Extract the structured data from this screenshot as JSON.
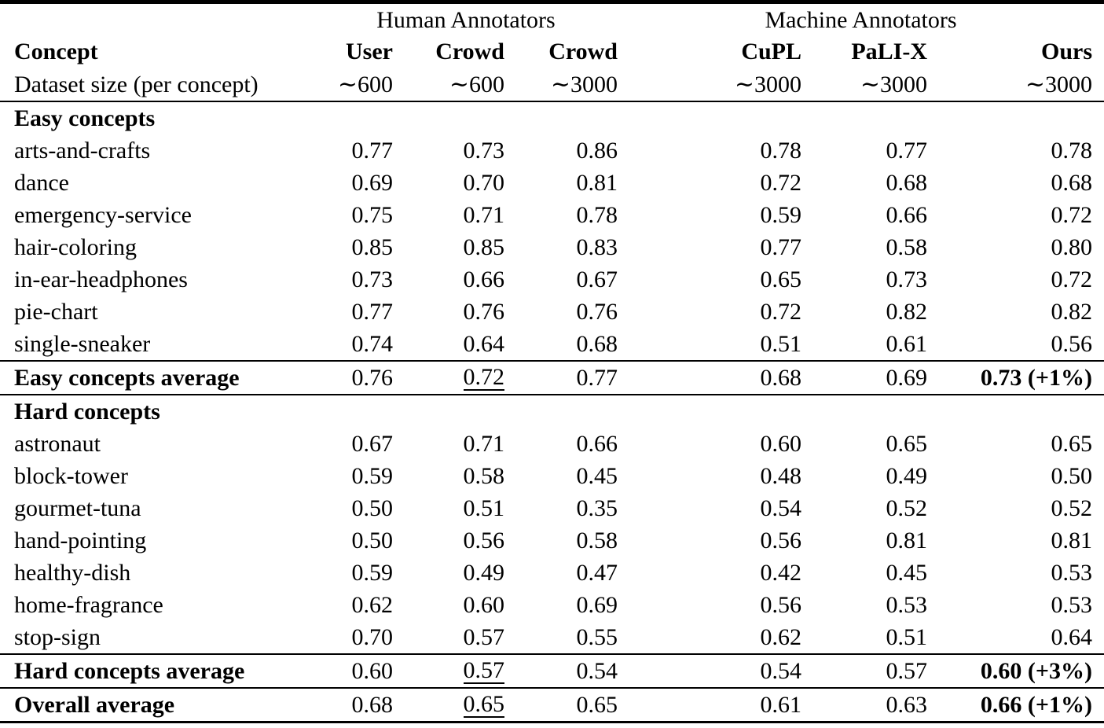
{
  "table": {
    "group_headers": [
      "Human Annotators",
      "Machine Annotators"
    ],
    "columns": [
      "Concept",
      "User",
      "Crowd",
      "Crowd",
      "CuPL",
      "PaLI-X",
      "Ours"
    ],
    "sizes": [
      "Dataset size (per concept)",
      "∼600",
      "∼600",
      "∼3000",
      "∼3000",
      "∼3000",
      "∼3000"
    ],
    "rows": [
      {
        "type": "section",
        "label": "Easy concepts"
      },
      {
        "type": "data",
        "concept": "arts-and-crafts",
        "values": [
          "0.77",
          "0.73",
          "0.86",
          "0.78",
          "0.77",
          "0.78"
        ]
      },
      {
        "type": "data",
        "concept": "dance",
        "values": [
          "0.69",
          "0.70",
          "0.81",
          "0.72",
          "0.68",
          "0.68"
        ]
      },
      {
        "type": "data",
        "concept": "emergency-service",
        "values": [
          "0.75",
          "0.71",
          "0.78",
          "0.59",
          "0.66",
          "0.72"
        ]
      },
      {
        "type": "data",
        "concept": "hair-coloring",
        "values": [
          "0.85",
          "0.85",
          "0.83",
          "0.77",
          "0.58",
          "0.80"
        ]
      },
      {
        "type": "data",
        "concept": "in-ear-headphones",
        "values": [
          "0.73",
          "0.66",
          "0.67",
          "0.65",
          "0.73",
          "0.72"
        ]
      },
      {
        "type": "data",
        "concept": "pie-chart",
        "values": [
          "0.77",
          "0.76",
          "0.76",
          "0.72",
          "0.82",
          "0.82"
        ]
      },
      {
        "type": "data",
        "concept": "single-sneaker",
        "values": [
          "0.74",
          "0.64",
          "0.68",
          "0.51",
          "0.61",
          "0.56"
        ]
      },
      {
        "type": "average",
        "concept": "Easy concepts average",
        "values": [
          "0.76",
          "0.72",
          "0.77",
          "0.68",
          "0.69",
          "0.73 (+1%)"
        ],
        "underline_col": 1,
        "bold_col": 5
      },
      {
        "type": "section",
        "label": "Hard concepts"
      },
      {
        "type": "data",
        "concept": "astronaut",
        "values": [
          "0.67",
          "0.71",
          "0.66",
          "0.60",
          "0.65",
          "0.65"
        ]
      },
      {
        "type": "data",
        "concept": "block-tower",
        "values": [
          "0.59",
          "0.58",
          "0.45",
          "0.48",
          "0.49",
          "0.50"
        ]
      },
      {
        "type": "data",
        "concept": "gourmet-tuna",
        "values": [
          "0.50",
          "0.51",
          "0.35",
          "0.54",
          "0.52",
          "0.52"
        ]
      },
      {
        "type": "data",
        "concept": "hand-pointing",
        "values": [
          "0.50",
          "0.56",
          "0.58",
          "0.56",
          "0.81",
          "0.81"
        ]
      },
      {
        "type": "data",
        "concept": "healthy-dish",
        "values": [
          "0.59",
          "0.49",
          "0.47",
          "0.42",
          "0.45",
          "0.53"
        ]
      },
      {
        "type": "data",
        "concept": "home-fragrance",
        "values": [
          "0.62",
          "0.60",
          "0.69",
          "0.56",
          "0.53",
          "0.53"
        ]
      },
      {
        "type": "data",
        "concept": "stop-sign",
        "values": [
          "0.70",
          "0.57",
          "0.55",
          "0.62",
          "0.51",
          "0.64"
        ]
      },
      {
        "type": "average",
        "concept": "Hard concepts average",
        "values": [
          "0.60",
          "0.57",
          "0.54",
          "0.54",
          "0.57",
          "0.60 (+3%)"
        ],
        "underline_col": 1,
        "bold_col": 5
      },
      {
        "type": "average",
        "concept": "Overall average",
        "values": [
          "0.68",
          "0.65",
          "0.65",
          "0.61",
          "0.63",
          "0.66 (+1%)"
        ],
        "underline_col": 1,
        "bold_col": 5
      }
    ]
  }
}
